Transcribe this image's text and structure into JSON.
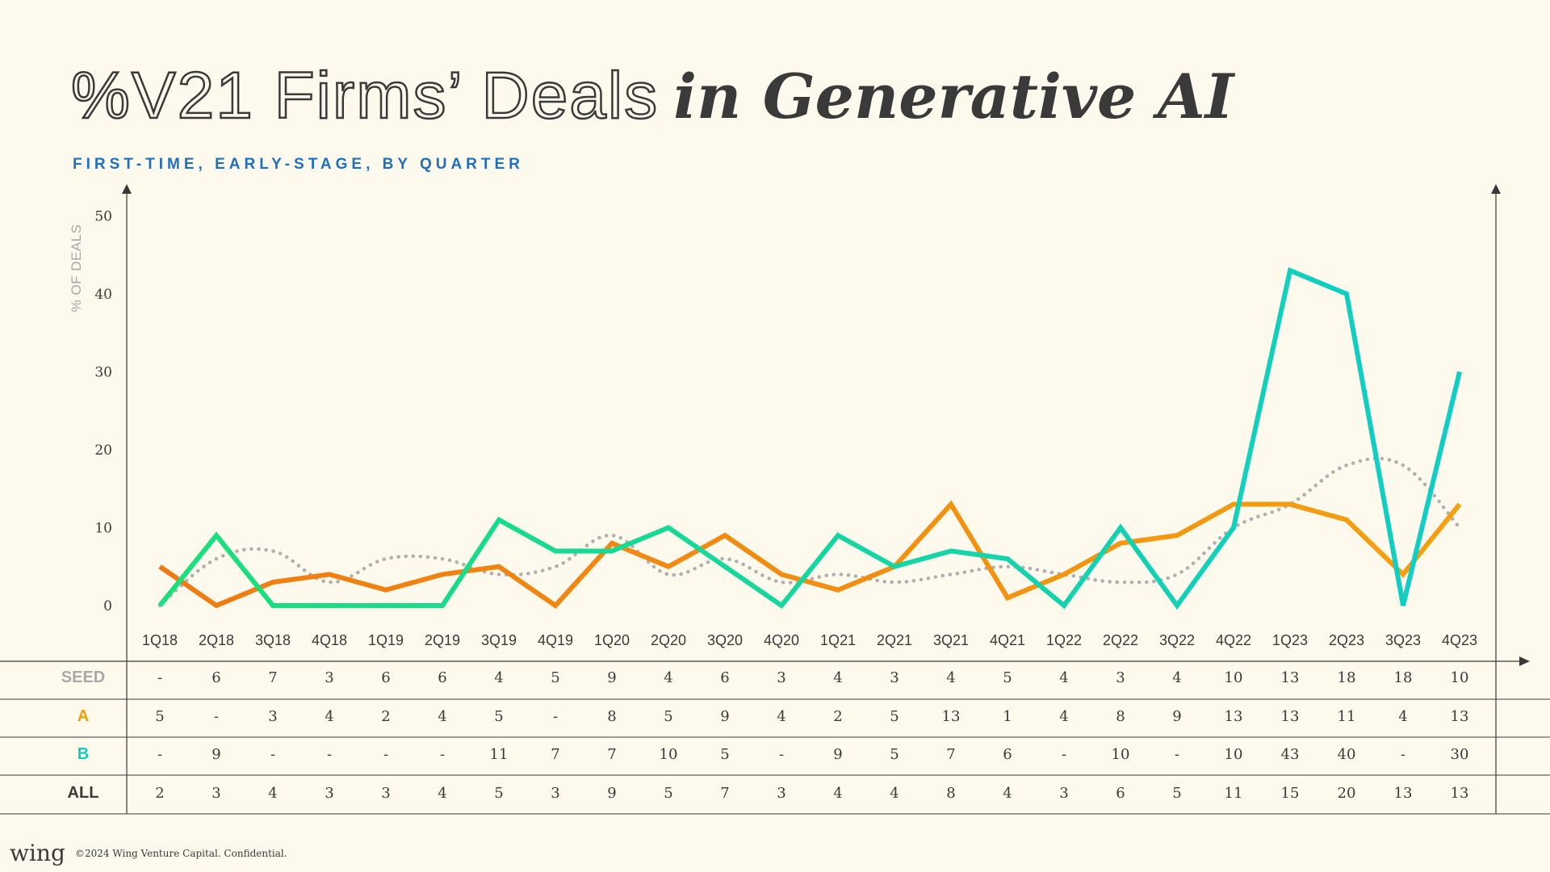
{
  "title": {
    "outline_part": "%V21 Firms’ Deals",
    "italic_part": "in Generative AI"
  },
  "subtitle": "FIRST-TIME, EARLY-STAGE, BY QUARTER",
  "footer": {
    "logo": "wing",
    "note": "©2024 Wing Venture Capital. Confidential."
  },
  "colors": {
    "seed": "#a8a8a8",
    "a": "#f59e0b",
    "b": "#12ccc0",
    "all": "#3a3a3a",
    "seed_line": "#b0b0b0",
    "a_line_start": "#f07a10",
    "a_line_end": "#f5a00f",
    "b_line_start": "#19e07a",
    "b_line_end": "#10cdc6"
  },
  "chart_data": {
    "type": "line",
    "title": "",
    "ylabel": "% OF DEALS",
    "ylim": [
      0,
      50
    ],
    "yticks": [
      0,
      10,
      20,
      30,
      40,
      50
    ],
    "categories": [
      "1Q18",
      "2Q18",
      "3Q18",
      "4Q18",
      "1Q19",
      "2Q19",
      "3Q19",
      "4Q19",
      "1Q20",
      "2Q20",
      "3Q20",
      "4Q20",
      "1Q21",
      "2Q21",
      "3Q21",
      "4Q21",
      "1Q22",
      "2Q22",
      "3Q22",
      "4Q22",
      "1Q23",
      "2Q23",
      "3Q23",
      "4Q23"
    ],
    "series": [
      {
        "name": "SEED",
        "style": "dotted",
        "values": [
          0,
          6,
          7,
          3,
          6,
          6,
          4,
          5,
          9,
          4,
          6,
          3,
          4,
          3,
          4,
          5,
          4,
          3,
          4,
          10,
          13,
          18,
          18,
          10
        ]
      },
      {
        "name": "A",
        "style": "solid",
        "values": [
          5,
          0,
          3,
          4,
          2,
          4,
          5,
          0,
          8,
          5,
          9,
          4,
          2,
          5,
          13,
          1,
          4,
          8,
          9,
          13,
          13,
          11,
          4,
          13
        ]
      },
      {
        "name": "B",
        "style": "solid",
        "values": [
          0,
          9,
          0,
          0,
          0,
          0,
          11,
          7,
          7,
          10,
          5,
          0,
          9,
          5,
          7,
          6,
          0,
          10,
          0,
          10,
          43,
          40,
          0,
          30
        ]
      }
    ],
    "table": {
      "rows": [
        {
          "label": "SEED",
          "color_key": "seed",
          "cells": [
            "-",
            "6",
            "7",
            "3",
            "6",
            "6",
            "4",
            "5",
            "9",
            "4",
            "6",
            "3",
            "4",
            "3",
            "4",
            "5",
            "4",
            "3",
            "4",
            "10",
            "13",
            "18",
            "18",
            "10"
          ]
        },
        {
          "label": "A",
          "color_key": "a",
          "cells": [
            "5",
            "-",
            "3",
            "4",
            "2",
            "4",
            "5",
            "-",
            "8",
            "5",
            "9",
            "4",
            "2",
            "5",
            "13",
            "1",
            "4",
            "8",
            "9",
            "13",
            "13",
            "11",
            "4",
            "13"
          ]
        },
        {
          "label": "B",
          "color_key": "b",
          "cells": [
            "-",
            "9",
            "-",
            "-",
            "-",
            "-",
            "11",
            "7",
            "7",
            "10",
            "5",
            "-",
            "9",
            "5",
            "7",
            "6",
            "-",
            "10",
            "-",
            "10",
            "43",
            "40",
            "-",
            "30"
          ]
        },
        {
          "label": "ALL",
          "color_key": "all",
          "cells": [
            "2",
            "3",
            "4",
            "3",
            "3",
            "4",
            "5",
            "3",
            "9",
            "5",
            "7",
            "3",
            "4",
            "4",
            "8",
            "4",
            "3",
            "6",
            "5",
            "11",
            "15",
            "20",
            "13",
            "13"
          ]
        }
      ]
    }
  }
}
